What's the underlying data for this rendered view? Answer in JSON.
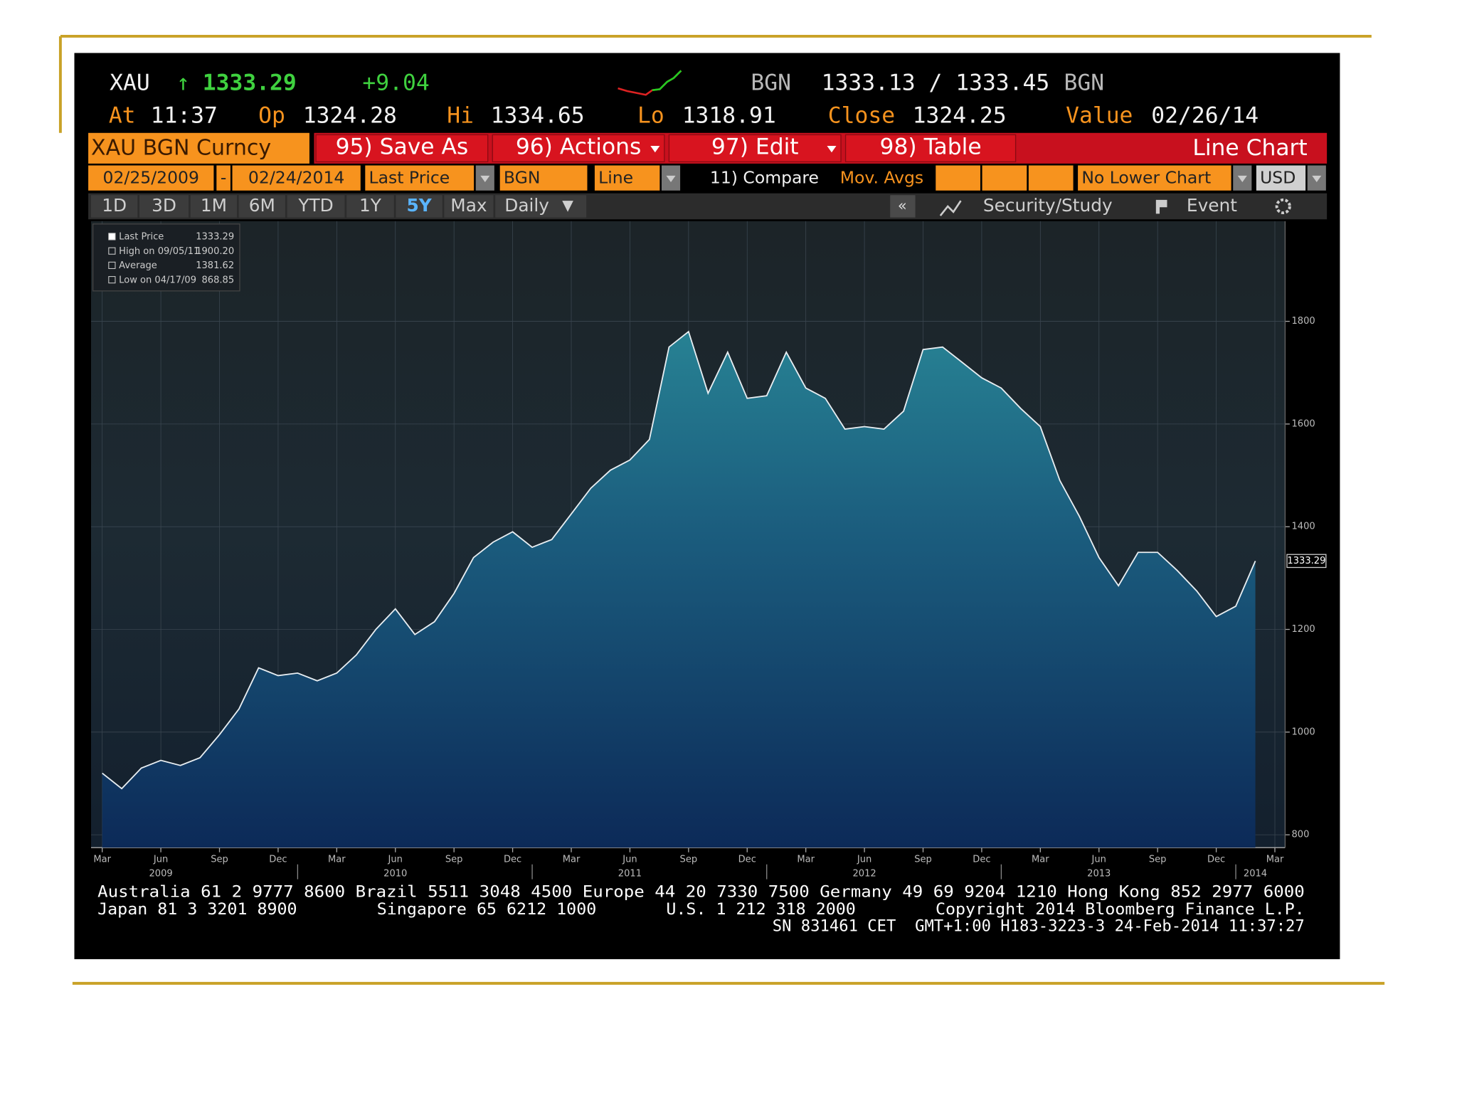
{
  "quote": {
    "ticker": "XAU",
    "direction": "↑",
    "last": "1333.29",
    "change": "+9.04",
    "bid_source": "BGN",
    "bid_ask": "1333.13 / 1333.45",
    "ask_source": "BGN",
    "at_label": "At",
    "at": "11:37",
    "open_label": "Op",
    "open": "1324.28",
    "high_label": "Hi",
    "high": "1334.65",
    "low_label": "Lo",
    "low": "1318.91",
    "close_label": "Close",
    "close": "1324.25",
    "value_label": "Value",
    "value_date": "02/26/14"
  },
  "toolbar": {
    "security": "XAU BGN Curncy",
    "buttons": [
      "95) Save As",
      "96) Actions",
      "97) Edit",
      "98) Table"
    ],
    "chart_kind": "Line Chart"
  },
  "settings": {
    "start": "02/25/2009",
    "dash": "-",
    "end": "02/24/2014",
    "field": "Last Price",
    "source": "BGN",
    "style": "Line",
    "compare": "11) Compare",
    "mov_avgs": "Mov. Avgs",
    "lower": "No Lower Chart",
    "currency": "USD"
  },
  "ranges": {
    "periods": [
      "1D",
      "3D",
      "1M",
      "6M",
      "YTD",
      "1Y",
      "5Y",
      "Max"
    ],
    "selected": "5Y",
    "frequency": "Daily",
    "collapse": "«",
    "study": "Security/Study",
    "event": "Event"
  },
  "chart_data": {
    "type": "area",
    "legend_box": [
      {
        "label": "Last Price",
        "value": "1333.29"
      },
      {
        "label": "High on 09/05/11",
        "value": "1900.20"
      },
      {
        "label": "Average",
        "value": "1381.62"
      },
      {
        "label": "Low on 04/17/09",
        "value": "868.85"
      }
    ],
    "categories": [
      "Mar",
      null,
      null,
      "Jun",
      null,
      null,
      "Sep",
      null,
      null,
      "Dec",
      null,
      null,
      "Mar",
      null,
      null,
      "Jun",
      null,
      null,
      "Sep",
      null,
      null,
      "Dec",
      null,
      null,
      "Mar",
      null,
      null,
      "Jun",
      null,
      null,
      "Sep",
      null,
      null,
      "Dec",
      null,
      null,
      "Mar",
      null,
      null,
      "Jun",
      null,
      null,
      "Sep",
      null,
      null,
      "Dec",
      null,
      null,
      "Mar",
      null,
      null,
      "Jun",
      null,
      null,
      "Sep",
      null,
      null,
      "Dec",
      null,
      null,
      "Mar"
    ],
    "year_labels": [
      "2009",
      "2010",
      "2011",
      "2012",
      "2013",
      "2014"
    ],
    "series": [
      {
        "color": "#e8eef2",
        "values": [
          920,
          890,
          930,
          945,
          935,
          950,
          995,
          1045,
          1125,
          1110,
          1115,
          1100,
          1115,
          1150,
          1200,
          1240,
          1190,
          1215,
          1270,
          1340,
          1370,
          1390,
          1360,
          1375,
          1425,
          1475,
          1510,
          1530,
          1570,
          1750,
          1780,
          1660,
          1740,
          1650,
          1655,
          1740,
          1670,
          1650,
          1590,
          1595,
          1590,
          1625,
          1745,
          1750,
          1720,
          1690,
          1670,
          1630,
          1595,
          1490,
          1420,
          1340,
          1285,
          1350,
          1350,
          1315,
          1275,
          1225,
          1245,
          1333.29,
          null
        ]
      }
    ],
    "last_label": "1333.29",
    "ylim": [
      775,
      1995
    ],
    "yticks": [
      800,
      1000,
      1200,
      1400,
      1600,
      1800
    ],
    "grid": true
  },
  "footer": {
    "lines": [
      "Australia 61 2 9777 8600 Brazil 5511 3048 4500 Europe 44 20 7330 7500 Germany 49 69 9204 1210 Hong Kong 852 2977 6000",
      "Japan 81 3 3201 8900        Singapore 65 6212 1000       U.S. 1 212 318 2000        Copyright 2014 Bloomberg Finance L.P.",
      "SN 831461 CET  GMT+1:00 H183-3223-3 24-Feb-2014 11:37:27"
    ]
  }
}
